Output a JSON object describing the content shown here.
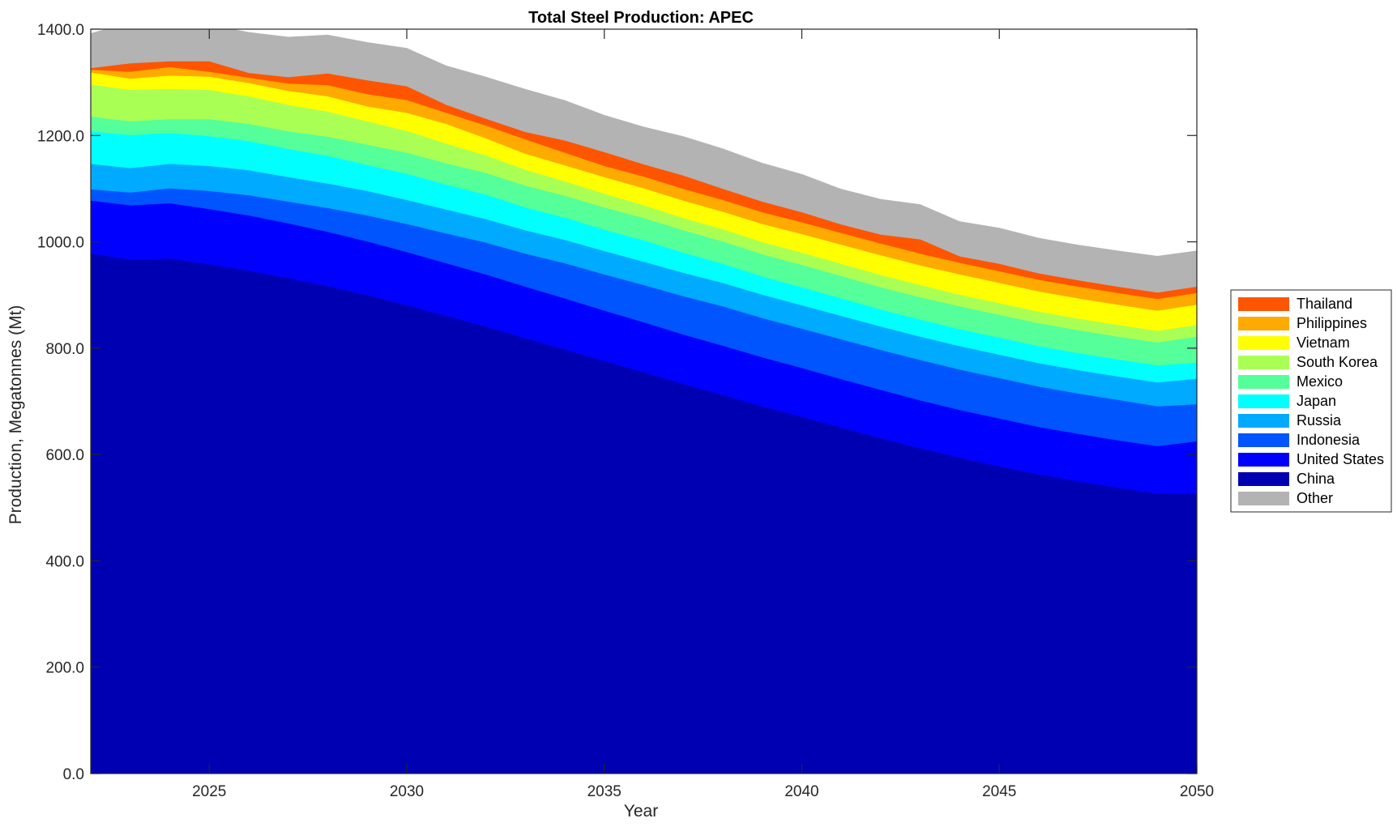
{
  "chart_data": {
    "type": "area",
    "stacked": true,
    "title": "Total Steel Production: APEC",
    "xlabel": "Year",
    "ylabel": "Production, Megatonnes (Mt)",
    "xlim": [
      2022,
      2050
    ],
    "ylim": [
      0,
      1400
    ],
    "x_ticks": [
      2025,
      2030,
      2035,
      2040,
      2045,
      2050
    ],
    "y_ticks": [
      "0.0",
      "200.0",
      "400.0",
      "600.0",
      "800.0",
      "1000.0",
      "1200.0",
      "1400.0"
    ],
    "grid": false,
    "legend_position": "outside-right",
    "x": [
      2022,
      2023,
      2024,
      2025,
      2026,
      2027,
      2028,
      2029,
      2030,
      2031,
      2032,
      2033,
      2034,
      2035,
      2036,
      2037,
      2038,
      2039,
      2040,
      2041,
      2042,
      2043,
      2044,
      2045,
      2046,
      2047,
      2048,
      2049,
      2050
    ],
    "series": [
      {
        "name": "China",
        "color": "#0000b3",
        "values": [
          978,
          967,
          969,
          958,
          946,
          932,
          917,
          900,
          881,
          861,
          841,
          819,
          798,
          776,
          755,
          733,
          712,
          691,
          671,
          651,
          631,
          612,
          594,
          578,
          563,
          550,
          538,
          527,
          527
        ]
      },
      {
        "name": "United States",
        "color": "#0000ff",
        "values": [
          100,
          102,
          104,
          104,
          104,
          103,
          102,
          101,
          100,
          99,
          98,
          97,
          96,
          95,
          94,
          93,
          93,
          92,
          92,
          91,
          91,
          90,
          90,
          90,
          89,
          89,
          89,
          89,
          98
        ]
      },
      {
        "name": "Indonesia",
        "color": "#0055ff",
        "values": [
          21,
          24,
          28,
          34,
          38,
          41,
          45,
          49,
          53,
          56,
          60,
          62,
          66,
          68,
          70,
          72,
          74,
          74,
          74,
          75,
          75,
          76,
          76,
          76,
          76,
          76,
          76,
          75,
          70
        ]
      },
      {
        "name": "Russia",
        "color": "#00aaff",
        "values": [
          48,
          46,
          46,
          47,
          47,
          46,
          46,
          46,
          45,
          45,
          44,
          44,
          44,
          44,
          44,
          44,
          44,
          44,
          44,
          44,
          44,
          44,
          44,
          44,
          44,
          44,
          44,
          45,
          48
        ]
      },
      {
        "name": "Japan",
        "color": "#00ffff",
        "values": [
          61,
          62,
          58,
          56,
          55,
          53,
          52,
          49,
          49,
          47,
          46,
          43,
          42,
          40,
          40,
          38,
          36,
          34,
          34,
          33,
          32,
          32,
          32,
          32,
          32,
          32,
          32,
          32,
          30
        ]
      },
      {
        "name": "Mexico",
        "color": "#55ff99",
        "values": [
          28,
          26,
          26,
          32,
          32,
          33,
          36,
          38,
          40,
          40,
          41,
          41,
          41,
          42,
          42,
          42,
          42,
          42,
          42,
          42,
          42,
          42,
          43,
          43,
          43,
          43,
          43,
          43,
          49
        ]
      },
      {
        "name": "South Korea",
        "color": "#aaff55",
        "values": [
          60,
          59,
          57,
          55,
          52,
          50,
          47,
          44,
          41,
          37,
          33,
          30,
          27,
          26,
          24,
          23,
          23,
          23,
          23,
          23,
          23,
          23,
          22,
          22,
          22,
          22,
          22,
          22,
          22
        ]
      },
      {
        "name": "Vietnam",
        "color": "#ffff00",
        "values": [
          23,
          21,
          25,
          25,
          25,
          26,
          29,
          28,
          34,
          37,
          32,
          30,
          30,
          31,
          32,
          33,
          33,
          34,
          35,
          36,
          37,
          37,
          38,
          38,
          38,
          38,
          38,
          38,
          38
        ]
      },
      {
        "name": "Philippines",
        "color": "#ffaa00",
        "values": [
          5,
          13,
          16,
          9,
          10,
          14,
          21,
          23,
          24,
          21,
          24,
          27,
          24,
          21,
          22,
          22,
          22,
          22,
          22,
          22,
          22,
          22,
          22,
          22,
          22,
          22,
          22,
          22,
          22
        ]
      },
      {
        "name": "Thailand",
        "color": "#ff5500",
        "values": [
          3,
          16,
          11,
          20,
          9,
          12,
          22,
          26,
          26,
          15,
          13,
          14,
          23,
          26,
          23,
          25,
          21,
          20,
          19,
          16,
          17,
          27,
          12,
          14,
          12,
          12,
          12,
          12,
          12
        ]
      },
      {
        "name": "Other",
        "color": "#b3b3b3",
        "values": [
          65,
          77,
          81,
          68,
          76,
          75,
          72,
          71,
          71,
          73,
          78,
          80,
          75,
          69,
          70,
          73,
          75,
          72,
          71,
          66,
          66,
          65,
          65,
          67,
          66,
          66,
          67,
          68,
          67
        ]
      }
    ],
    "legend": [
      "Thailand",
      "Philippines",
      "Vietnam",
      "South Korea",
      "Mexico",
      "Japan",
      "Russia",
      "Indonesia",
      "United States",
      "China",
      "Other"
    ]
  }
}
